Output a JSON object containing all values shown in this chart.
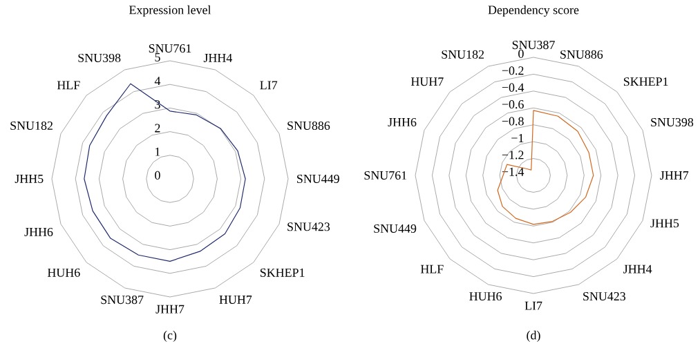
{
  "chart_data": [
    {
      "type": "radar",
      "title": "Expression level",
      "categories": [
        "SNU761",
        "JHH4",
        "LI7",
        "SNU886",
        "SNU449",
        "SNU423",
        "SKHEP1",
        "HUH7",
        "JHH7",
        "SNU387",
        "HUH6",
        "JHH6",
        "JHH5",
        "SNU182",
        "HLF",
        "SNU398"
      ],
      "series": [
        {
          "color": "#1f2a6e",
          "values": [
            2.87,
            2.93,
            3.02,
            3.1,
            3.19,
            3.21,
            3.29,
            3.32,
            3.49,
            3.49,
            3.56,
            3.54,
            3.63,
            3.68,
            3.79,
            4.36
          ]
        }
      ],
      "ylim": [
        0,
        5
      ],
      "yticks": [
        0,
        1,
        2,
        3,
        4,
        5
      ],
      "grid": true,
      "annotations": [
        "(c)"
      ]
    },
    {
      "type": "radar",
      "title": "Dependency score",
      "categories": [
        "SNU387",
        "SNU886",
        "SKHEP1",
        "SNU398",
        "JHH7",
        "JHH5",
        "JHH4",
        "SNU423",
        "LI7",
        "HUH6",
        "HLF",
        "SNU449",
        "SNU761",
        "JHH6",
        "HUH7",
        "SNU182"
      ],
      "series": [
        {
          "color": "#d3661d",
          "values": [
            -0.63,
            -0.64,
            -0.66,
            -0.69,
            -0.69,
            -0.73,
            -0.78,
            -0.81,
            -0.82,
            -0.85,
            -0.88,
            -0.94,
            -1.04,
            -1.06,
            -1.29,
            -1.33
          ]
        }
      ],
      "ylim": [
        -1.4,
        0
      ],
      "yticks": [
        {
          "value": 0,
          "label": "0"
        },
        {
          "value": -0.2,
          "label": "−0.2"
        },
        {
          "value": -0.4,
          "label": "−0.4"
        },
        {
          "value": -0.6,
          "label": "−0.6"
        },
        {
          "value": -0.8,
          "label": "−0.8"
        },
        {
          "value": -1,
          "label": "−1"
        },
        {
          "value": -1.2,
          "label": "−1.2"
        },
        {
          "value": -1.4,
          "label": "−1.4"
        }
      ],
      "grid": true,
      "annotations": [
        "(d)"
      ]
    }
  ]
}
